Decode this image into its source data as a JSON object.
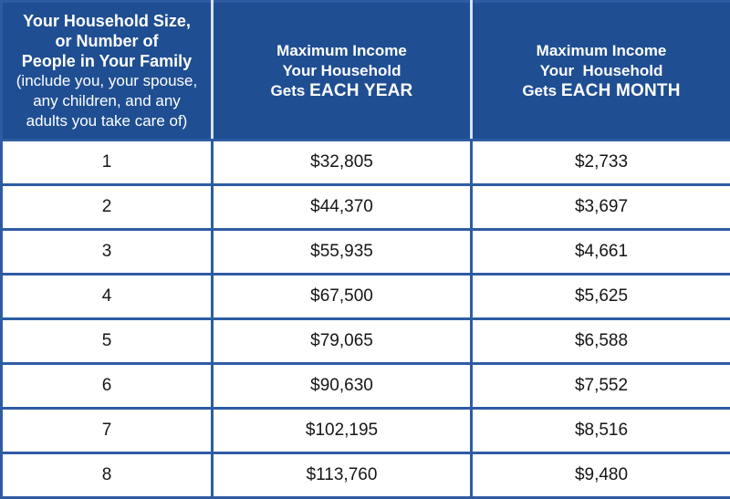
{
  "chart_data": {
    "type": "table",
    "header": {
      "size": {
        "bold1": "Your Household Size,",
        "bold2": "or Number of",
        "bold3": "People in Your Family",
        "note1": "(include you, your spouse,",
        "note2": "any children, and any",
        "note3": "adults you take care of)"
      },
      "year": {
        "line1": "Maximum Income",
        "line2": "Your Household",
        "line3_prefix": "Gets",
        "line3_emphasis": "EACH YEAR"
      },
      "month": {
        "line1": "Maximum Income",
        "line2": "Your  Household",
        "line3_prefix": "Gets",
        "line3_emphasis": "EACH MONTH"
      }
    },
    "rows": [
      {
        "size": "1",
        "year": "$32,805",
        "month": "$2,733"
      },
      {
        "size": "2",
        "year": "$44,370",
        "month": "$3,697"
      },
      {
        "size": "3",
        "year": "$55,935",
        "month": "$4,661"
      },
      {
        "size": "4",
        "year": "$67,500",
        "month": "$5,625"
      },
      {
        "size": "5",
        "year": "$79,065",
        "month": "$6,588"
      },
      {
        "size": "6",
        "year": "$90,630",
        "month": "$7,552"
      },
      {
        "size": "7",
        "year": "$102,195",
        "month": "$8,516"
      },
      {
        "size": "8",
        "year": "$113,760",
        "month": "$9,480"
      }
    ]
  },
  "colors": {
    "header_bg": "#1f4e92",
    "grid_border": "#2d5ca3",
    "header_divider": "#d9e3f1",
    "header_text": "#ffffff",
    "cell_text": "#161616",
    "row_bg": "#ffffff"
  }
}
